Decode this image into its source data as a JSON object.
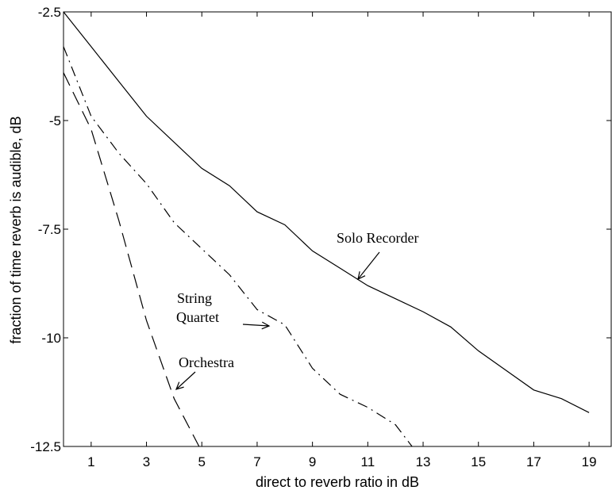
{
  "chart_data": {
    "type": "line",
    "xlabel": "direct to reverb ratio in dB",
    "ylabel": "fraction of time reverb is audible, dB",
    "xlim": [
      0,
      19.8
    ],
    "ylim": [
      -12.5,
      -2.5
    ],
    "xticks": [
      1,
      3,
      5,
      7,
      9,
      11,
      13,
      15,
      17,
      19
    ],
    "xtick_labels": [
      "1",
      "3",
      "5",
      "7",
      "9",
      "11",
      "13",
      "15",
      "17",
      "19"
    ],
    "yticks": [
      -2.5,
      -5,
      -7.5,
      -10,
      -12.5
    ],
    "ytick_labels": [
      "-2.5",
      "-5",
      "-7.5",
      "-10",
      "-12.5"
    ],
    "grid": false,
    "series": [
      {
        "name": "Solo Recorder",
        "style": "solid",
        "x": [
          0,
          1,
          2,
          3,
          4,
          5,
          6,
          7,
          8,
          9,
          10,
          11,
          12,
          13,
          14,
          15,
          16,
          17,
          18,
          19
        ],
        "y": [
          -2.5,
          -3.3,
          -4.1,
          -4.9,
          -5.5,
          -6.1,
          -6.5,
          -7.1,
          -7.4,
          -8.0,
          -8.4,
          -8.8,
          -9.1,
          -9.4,
          -9.75,
          -10.3,
          -10.75,
          -11.2,
          -11.4,
          -11.72
        ]
      },
      {
        "name": "String Quartet",
        "style": "dashdot",
        "x": [
          0,
          1,
          2,
          3,
          4,
          5,
          6,
          7,
          8,
          9,
          10,
          11,
          12,
          12.6
        ],
        "y": [
          -3.3,
          -4.9,
          -5.75,
          -6.45,
          -7.35,
          -7.95,
          -8.55,
          -9.35,
          -9.7,
          -10.7,
          -11.3,
          -11.6,
          -12.0,
          -12.5
        ]
      },
      {
        "name": "Orchestra",
        "style": "dashed",
        "x": [
          0,
          1,
          2,
          3,
          4,
          4.9
        ],
        "y": [
          -3.9,
          -5.2,
          -7.3,
          -9.6,
          -11.4,
          -12.5
        ]
      }
    ],
    "annotations": [
      {
        "text": "Solo Recorder",
        "target_series": "Solo Recorder"
      },
      {
        "text": "String",
        "target_series": "String Quartet"
      },
      {
        "text": "Quartet",
        "target_series": "String Quartet"
      },
      {
        "text": "Orchestra",
        "target_series": "Orchestra"
      }
    ]
  }
}
